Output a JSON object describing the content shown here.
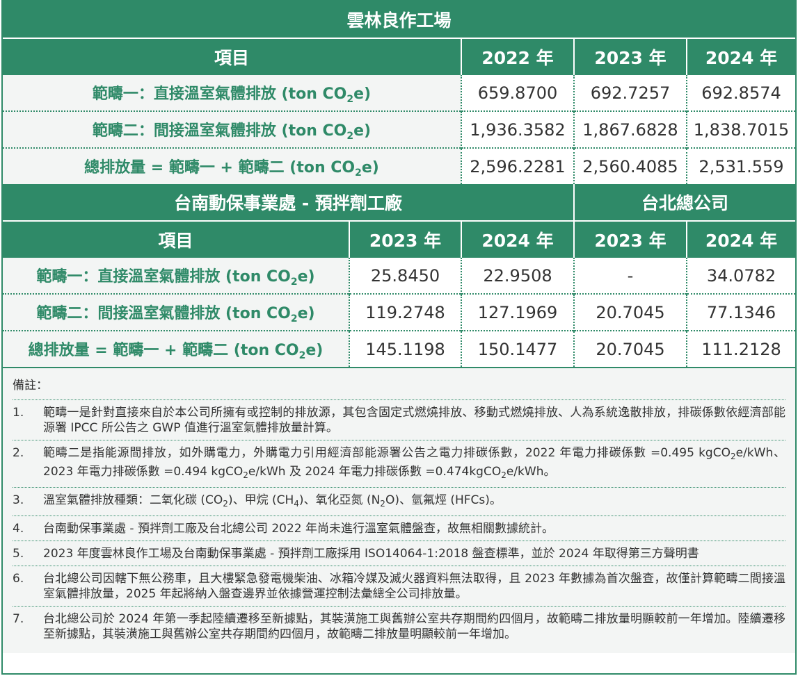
{
  "yunlin": {
    "title": "雲林良作工場",
    "header": {
      "item": "項目",
      "y2022": "2022 年",
      "y2023": "2023 年",
      "y2024": "2024 年"
    },
    "rows": [
      {
        "pre": "範疇一：直接溫室氣體排放 (ton CO",
        "sub": "2",
        "post": "e)",
        "v2022": "659.8700",
        "v2023": "692.7257",
        "v2024": "692.8574"
      },
      {
        "pre": "範疇二：間接溫室氣體排放 (ton CO",
        "sub": "2",
        "post": "e)",
        "v2022": "1,936.3582",
        "v2023": "1,867.6828",
        "v2024": "1,838.7015"
      },
      {
        "pre": "總排放量 = 範疇一 + 範疇二 (ton CO",
        "sub": "2",
        "post": "e)",
        "v2022": "2,596.2281",
        "v2023": "2,560.4085",
        "v2024": "2,531.559"
      }
    ]
  },
  "tainan_taipei": {
    "tainan_title": "台南動保事業處 - 預拌劑工廠",
    "taipei_title": "台北總公司",
    "header": {
      "item": "項目",
      "t2023": "2023 年",
      "t2024": "2024 年",
      "p2023": "2023 年",
      "p2024": "2024 年"
    },
    "rows": [
      {
        "pre": "範疇一：直接溫室氣體排放 (ton CO",
        "sub": "2",
        "post": "e)",
        "t2023": "25.8450",
        "t2024": "22.9508",
        "p2023": "-",
        "p2024": "34.0782"
      },
      {
        "pre": "範疇二：間接溫室氣體排放 (ton CO",
        "sub": "2",
        "post": "e)",
        "t2023": "119.2748",
        "t2024": "127.1969",
        "p2023": "20.7045",
        "p2024": "77.1346"
      },
      {
        "pre": "總排放量 = 範疇一 + 範疇二 (ton CO",
        "sub": "2",
        "post": "e)",
        "t2023": "145.1198",
        "t2024": "150.1477",
        "p2023": "20.7045",
        "p2024": "111.2128"
      }
    ]
  },
  "notes": {
    "title": "備註：",
    "items": [
      {
        "num": "1.",
        "text": "範疇一是針對直接來自於本公司所擁有或控制的排放源，其包含固定式燃燒排放、移動式燃燒排放、人為系統逸散排放，排碳係數依經濟部能源署 IPCC 所公告之 GWP 值進行溫室氣體排放量計算。"
      },
      {
        "num": "2.",
        "text_a": "範疇二是指能源間排放，如外購電力，外購電力引用經濟部能源署公告之電力排碳係數，2022 年電力排碳係數 =0.495 kgCO",
        "text_b": "e/kWh、2023 年電力排碳係數 =0.494 kgCO",
        "text_c": "e/kWh 及 2024 年電力排碳係數 =0.474kgCO",
        "text_d": "e/kWh。",
        "sub": "2"
      },
      {
        "num": "3.",
        "text_a": "溫室氣體排放種類：二氧化碳 (CO",
        "text_b": ")、甲烷 (CH",
        "text_c": ")、氧化亞氮 (N",
        "text_d": "O)、氫氟烴 (HFCs)。",
        "sub_a": "2",
        "sub_b": "4",
        "sub_c": "2"
      },
      {
        "num": "4.",
        "text": "台南動保事業處 - 預拌劑工廠及台北總公司 2022 年尚未進行溫室氣體盤查，故無相關數據統計。"
      },
      {
        "num": "5.",
        "text": "2023 年度雲林良作工場及台南動保事業處 - 預拌劑工廠採用 ISO14064-1:2018 盤查標準，並於 2024 年取得第三方聲明書"
      },
      {
        "num": "6.",
        "text": "台北總公司因轄下無公務車，且大樓緊急發電機柴油、冰箱冷媒及滅火器資料無法取得，且 2023 年數據為首次盤查，故僅計算範疇二間接溫室氣體排放量，2025 年起將納入盤查邊界並依據營運控制法彙總全公司排放量。"
      },
      {
        "num": "7.",
        "text": "台北總公司於 2024 年第一季起陸續遷移至新據點，其裝潢施工與舊辦公室共存期間約四個月，故範疇二排放量明顯較前一年增加。陸續遷移至新據點，其裝潢施工與舊辦公室共存期間約四個月，故範疇二排放量明顯較前一年增加。"
      }
    ]
  },
  "colors": {
    "accent": "#2f8a68",
    "label_bg": "#f3f5f4",
    "text": "#333333"
  }
}
